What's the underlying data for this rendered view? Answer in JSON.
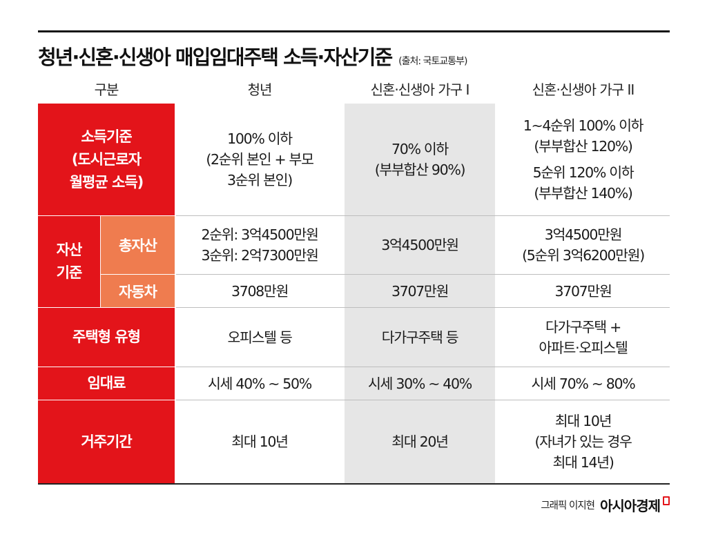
{
  "title": {
    "main": "청년·신혼·신생아 매입임대주택 소득·자산기준",
    "source": "(출처: 국토교통부)"
  },
  "header": {
    "category": "구분",
    "col1": "청년",
    "col2": "신혼·신생아 가구 I",
    "col3": "신혼·신생아 가구 II"
  },
  "income": {
    "label": [
      "소득기준",
      "(도시근로자",
      "월평균 소득)"
    ],
    "col1": [
      "100% 이하",
      "(2순위 본인 + 부모",
      "3순위 본인)"
    ],
    "col2": [
      "70% 이하",
      "(부부합산 90%)"
    ],
    "col3_a": [
      "1~4순위 100% 이하",
      "(부부합산 120%)"
    ],
    "col3_b": [
      "5순위 120% 이하",
      "(부부합산 140%)"
    ]
  },
  "asset": {
    "label": [
      "자산",
      "기준"
    ],
    "total": {
      "label": "총자산",
      "col1": [
        "2순위: 3억4500만원",
        "3순위: 2억7300만원"
      ],
      "col2": "3억4500만원",
      "col3": [
        "3억4500만원",
        "(5순위 3억6200만원)"
      ]
    },
    "car": {
      "label": "자동차",
      "col1": "3708만원",
      "col2": "3707만원",
      "col3": "3707만원"
    }
  },
  "housing_type": {
    "label": "주택형 유형",
    "col1": "오피스텔 등",
    "col2": "다가구주택 등",
    "col3": [
      "다가구주택 +",
      "아파트·오피스텔"
    ]
  },
  "rent": {
    "label": "임대료",
    "col1": "시세 40% ~ 50%",
    "col2": "시세 30% ~ 40%",
    "col3": "시세 70% ~ 80%"
  },
  "residence": {
    "label": "거주기간",
    "col1": "최대 10년",
    "col2": "최대 20년",
    "col3": [
      "최대 10년",
      "(자녀가 있는 경우",
      "최대 14년)"
    ]
  },
  "credit": {
    "byline": "그래픽 이지현",
    "brand": "아시아경제"
  },
  "colors": {
    "red": "#e3141a",
    "orange": "#ef7c4f",
    "grey_column": "#e6e6e6"
  }
}
